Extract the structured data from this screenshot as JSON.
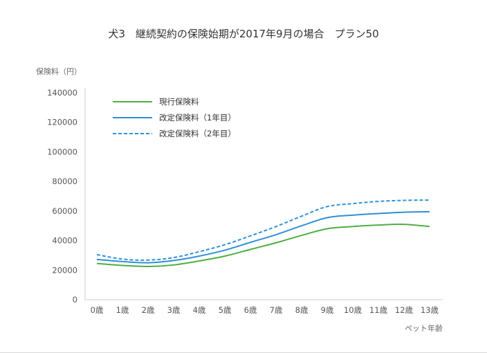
{
  "chart_data": {
    "type": "line",
    "title": "犬3　継続契約の保険始期が2017年9月の場合　プラン50",
    "ylabel": "保険料（円）",
    "xlabel": "ペット年齢",
    "ylim": [
      0,
      140000
    ],
    "yticks": [
      "0",
      "20000",
      "40000",
      "60000",
      "80000",
      "100000",
      "120000",
      "140000"
    ],
    "categories": [
      "0歳",
      "1歳",
      "2歳",
      "3歳",
      "4歳",
      "5歳",
      "6歳",
      "7歳",
      "8歳",
      "9歳",
      "10歳",
      "11歳",
      "12歳",
      "13歳"
    ],
    "legend_position": "top-left",
    "grid": false,
    "series": [
      {
        "name": "現行保険料",
        "color": "#4caf3e",
        "style": "solid",
        "values": [
          24500,
          23200,
          22500,
          23500,
          26200,
          29500,
          34000,
          38500,
          43500,
          48000,
          49500,
          50500,
          51000,
          49500
        ]
      },
      {
        "name": "改定保険料（1年目）",
        "color": "#2f8fd8",
        "style": "solid",
        "values": [
          27200,
          25800,
          25000,
          26500,
          29500,
          33500,
          38800,
          44000,
          50000,
          55500,
          57200,
          58300,
          59200,
          59500
        ]
      },
      {
        "name": "改定保険料（2年目）",
        "color": "#2f8fd8",
        "style": "dashed",
        "values": [
          30500,
          27500,
          26800,
          28500,
          32500,
          37200,
          43200,
          49500,
          56500,
          63000,
          65000,
          66500,
          67200,
          67400
        ]
      }
    ]
  }
}
